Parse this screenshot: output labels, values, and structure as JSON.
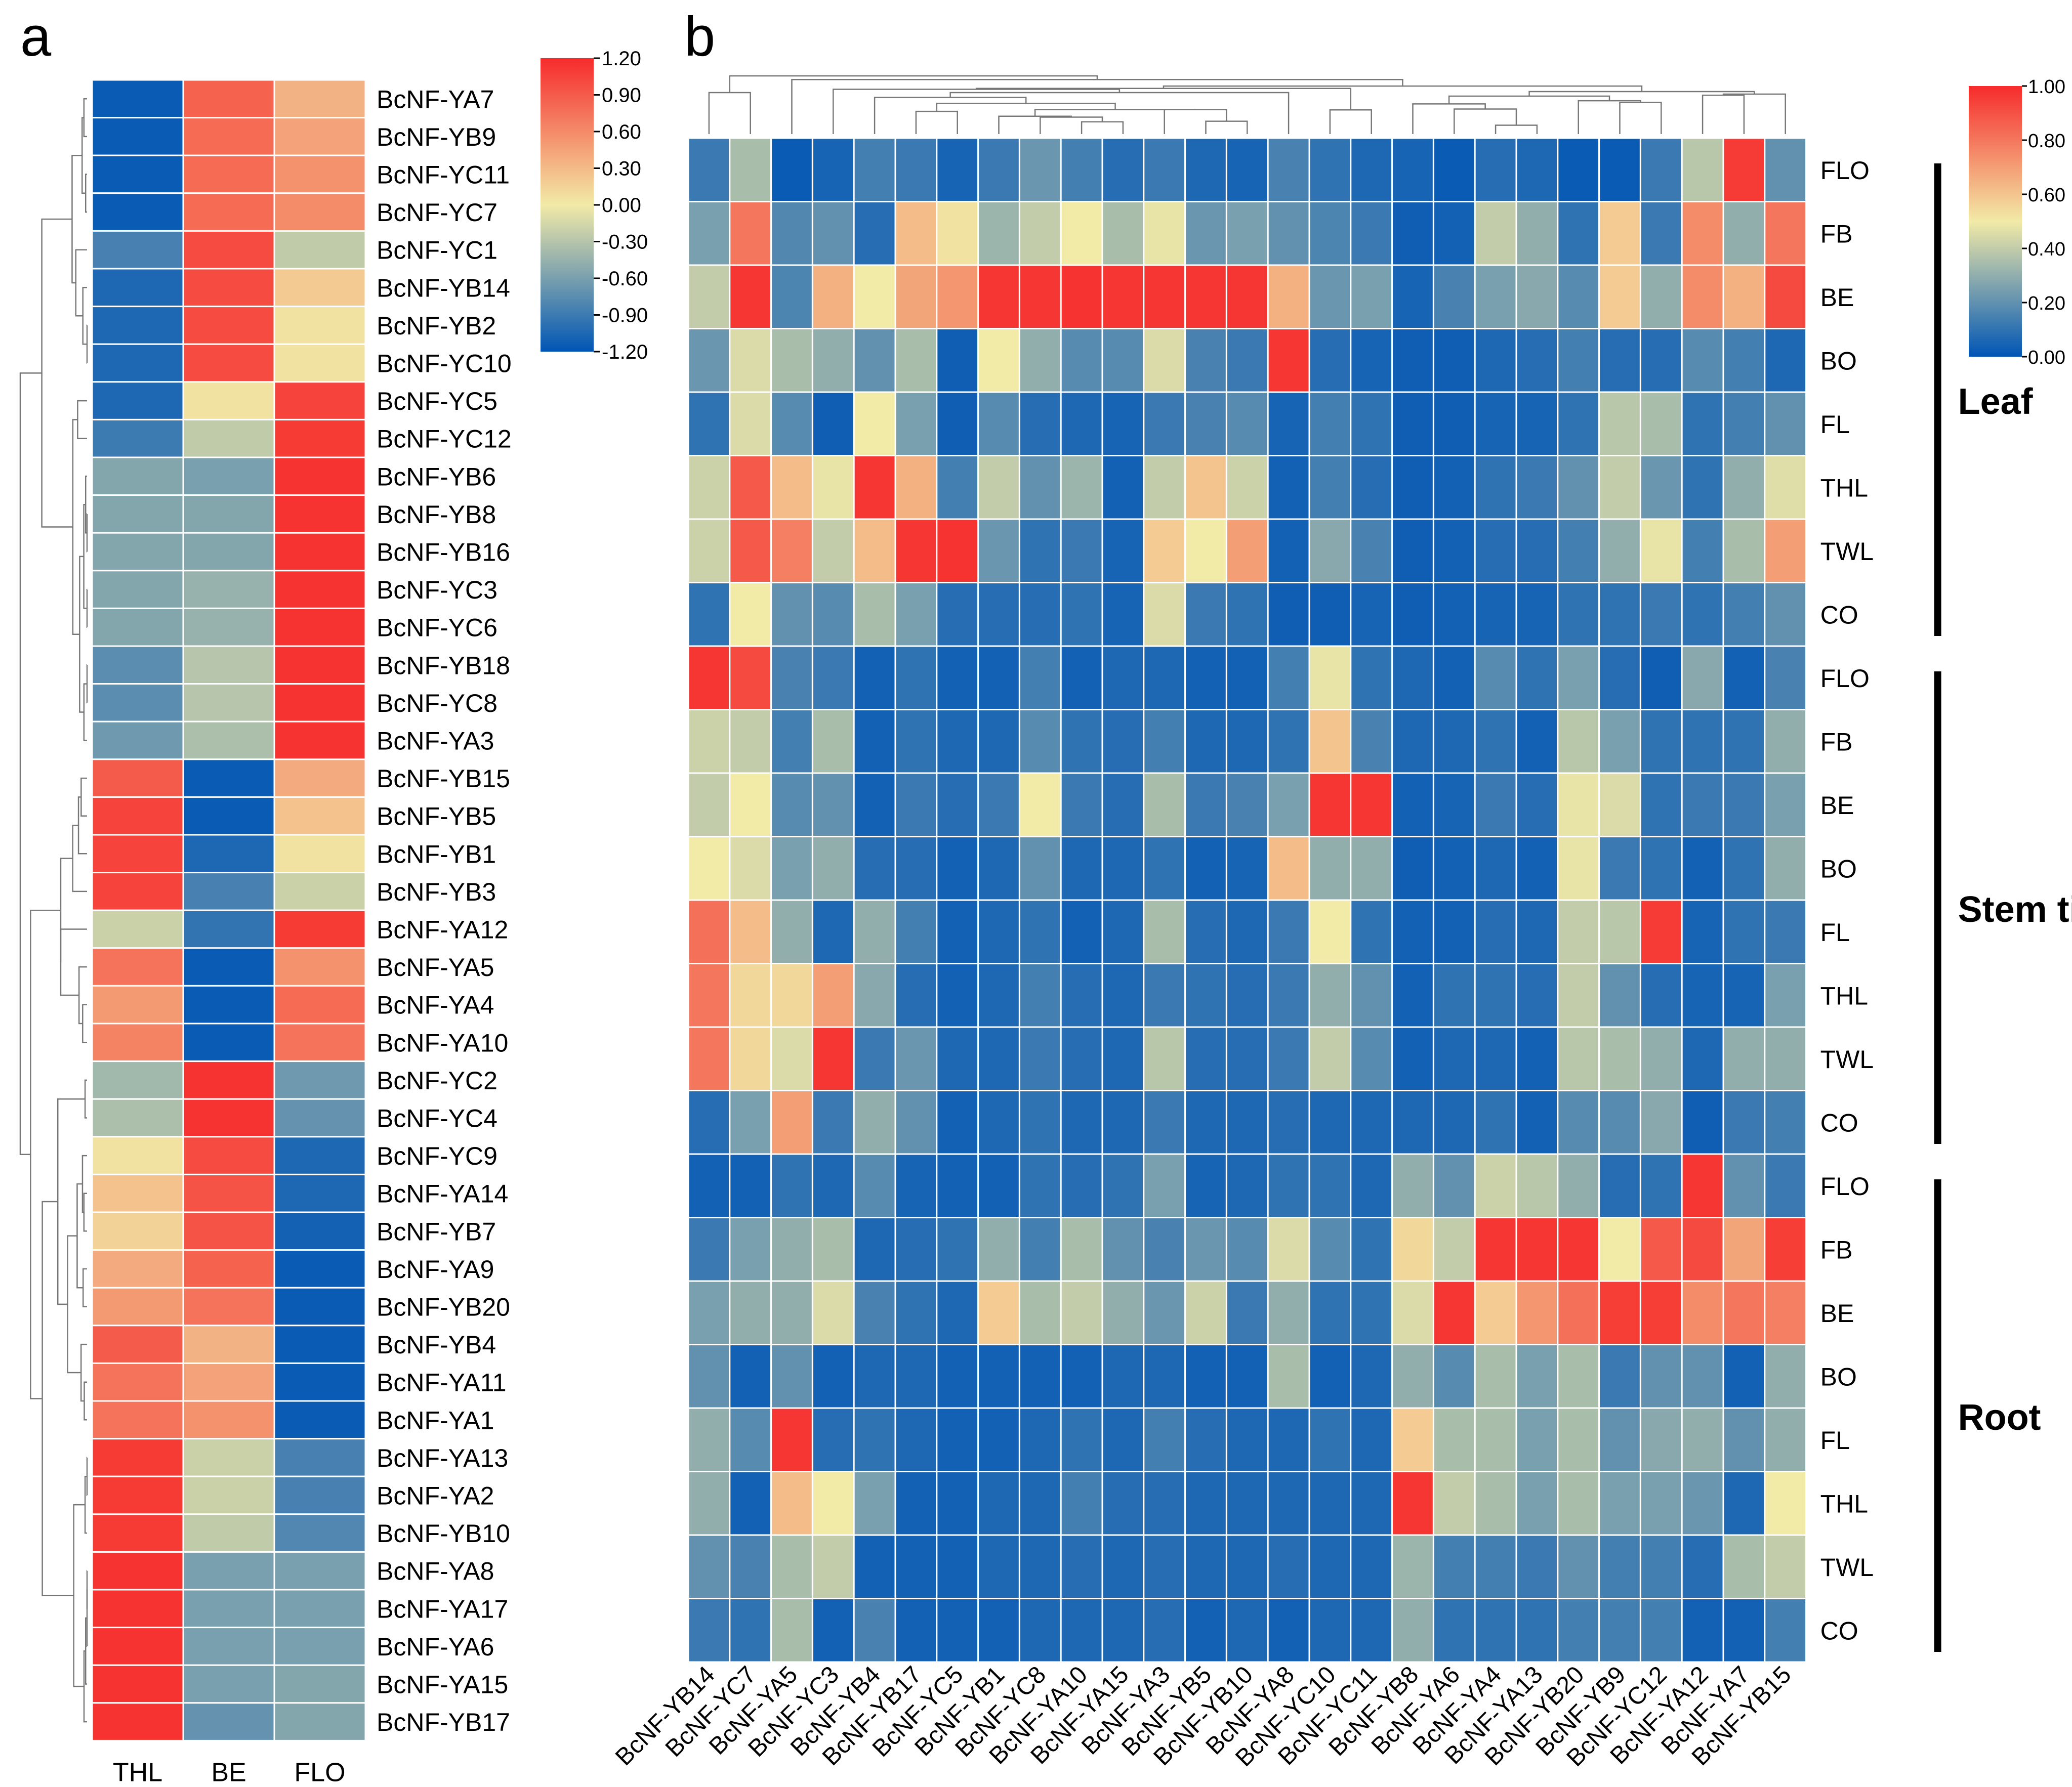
{
  "chart_data": [
    {
      "panel_label": "a",
      "type": "heatmap",
      "columns": [
        "THL",
        "BE",
        "FLO"
      ],
      "rows": [
        "BcNF-YA7",
        "BcNF-YB9",
        "BcNF-YC11",
        "BcNF-YC7",
        "BcNF-YC1",
        "BcNF-YB14",
        "BcNF-YB2",
        "BcNF-YC10",
        "BcNF-YC5",
        "BcNF-YC12",
        "BcNF-YB6",
        "BcNF-YB8",
        "BcNF-YB16",
        "BcNF-YC3",
        "BcNF-YC6",
        "BcNF-YB18",
        "BcNF-YC8",
        "BcNF-YA3",
        "BcNF-YB15",
        "BcNF-YB5",
        "BcNF-YB1",
        "BcNF-YB3",
        "BcNF-YA12",
        "BcNF-YA5",
        "BcNF-YA4",
        "BcNF-YA10",
        "BcNF-YC2",
        "BcNF-YC4",
        "BcNF-YC9",
        "BcNF-YA14",
        "BcNF-YB7",
        "BcNF-YA9",
        "BcNF-YB20",
        "BcNF-YB4",
        "BcNF-YA11",
        "BcNF-YA1",
        "BcNF-YA13",
        "BcNF-YA2",
        "BcNF-YB10",
        "BcNF-YA8",
        "BcNF-YA17",
        "BcNF-YA6",
        "BcNF-YA15",
        "BcNF-YB17"
      ],
      "values": [
        [
          -1.15,
          0.85,
          0.35
        ],
        [
          -1.15,
          0.8,
          0.45
        ],
        [
          -1.15,
          0.8,
          0.55
        ],
        [
          -1.15,
          0.8,
          0.6
        ],
        [
          -0.85,
          1.0,
          -0.25
        ],
        [
          -1.05,
          1.0,
          0.2
        ],
        [
          -1.05,
          1.0,
          0.05
        ],
        [
          -1.05,
          1.0,
          0.05
        ],
        [
          -1.05,
          0.05,
          1.05
        ],
        [
          -0.9,
          -0.25,
          1.1
        ],
        [
          -0.55,
          -0.6,
          1.15
        ],
        [
          -0.55,
          -0.55,
          1.15
        ],
        [
          -0.55,
          -0.55,
          1.15
        ],
        [
          -0.55,
          -0.45,
          1.15
        ],
        [
          -0.55,
          -0.45,
          1.15
        ],
        [
          -0.75,
          -0.3,
          1.15
        ],
        [
          -0.75,
          -0.3,
          1.15
        ],
        [
          -0.65,
          -0.35,
          1.15
        ],
        [
          0.9,
          -1.15,
          0.4
        ],
        [
          1.05,
          -1.15,
          0.25
        ],
        [
          1.05,
          -1.05,
          0.05
        ],
        [
          1.05,
          -0.85,
          -0.2
        ],
        [
          -0.2,
          -0.95,
          1.1
        ],
        [
          0.75,
          -1.15,
          0.55
        ],
        [
          0.5,
          -1.15,
          0.8
        ],
        [
          0.65,
          -1.15,
          0.75
        ],
        [
          -0.4,
          1.15,
          -0.65
        ],
        [
          -0.35,
          1.15,
          -0.7
        ],
        [
          0.05,
          1.0,
          -1.05
        ],
        [
          0.25,
          0.95,
          -1.05
        ],
        [
          0.15,
          0.95,
          -1.1
        ],
        [
          0.4,
          0.85,
          -1.15
        ],
        [
          0.5,
          0.75,
          -1.15
        ],
        [
          0.9,
          0.35,
          -1.15
        ],
        [
          0.75,
          0.45,
          -1.15
        ],
        [
          0.75,
          0.55,
          -1.15
        ],
        [
          1.1,
          -0.2,
          -0.85
        ],
        [
          1.1,
          -0.2,
          -0.85
        ],
        [
          1.1,
          -0.25,
          -0.8
        ],
        [
          1.15,
          -0.6,
          -0.6
        ],
        [
          1.15,
          -0.6,
          -0.6
        ],
        [
          1.15,
          -0.6,
          -0.6
        ],
        [
          1.15,
          -0.6,
          -0.55
        ],
        [
          1.15,
          -0.7,
          -0.55
        ]
      ],
      "colorbar": {
        "min": -1.2,
        "max": 1.2,
        "tick_labels": [
          "1.20",
          "0.90",
          "0.60",
          "0.30",
          "0.00",
          "-0.30",
          "-0.60",
          "-0.90",
          "-1.20"
        ],
        "colors": [
          "#0055b5",
          "#f2eaa7",
          "#f62b2b"
        ]
      }
    },
    {
      "panel_label": "b",
      "type": "heatmap",
      "columns": [
        "BcNF-YB14",
        "BcNF-YC7",
        "BcNF-YA5",
        "BcNF-YC3",
        "BcNF-YB4",
        "BcNF-YB17",
        "BcNF-YC5",
        "BcNF-YB1",
        "BcNF-YC8",
        "BcNF-YA10",
        "BcNF-YA15",
        "BcNF-YA3",
        "BcNF-YB5",
        "BcNF-YB10",
        "BcNF-YA8",
        "BcNF-YC10",
        "BcNF-YC11",
        "BcNF-YB8",
        "BcNF-YA6",
        "BcNF-YA4",
        "BcNF-YA13",
        "BcNF-YB20",
        "BcNF-YB9",
        "BcNF-YC12",
        "BcNF-YA12",
        "BcNF-YA7",
        "BcNF-YB15"
      ],
      "rows": [
        "FLO",
        "FB",
        "BE",
        "BO",
        "FL",
        "THL",
        "TWL",
        "CO",
        "FLO",
        "FB",
        "BE",
        "BO",
        "FL",
        "THL",
        "TWL",
        "CO",
        "FLO",
        "FB",
        "BE",
        "BO",
        "FL",
        "THL",
        "TWL",
        "CO"
      ],
      "groups": [
        {
          "label": "Leaf",
          "rows": [
            0,
            7
          ]
        },
        {
          "label": "Stem tip",
          "rows": [
            8,
            15
          ]
        },
        {
          "label": "Root",
          "rows": [
            16,
            23
          ]
        }
      ],
      "values": [
        [
          0.12,
          0.35,
          0.02,
          0.05,
          0.14,
          0.12,
          0.05,
          0.12,
          0.22,
          0.14,
          0.08,
          0.12,
          0.06,
          0.05,
          0.15,
          0.1,
          0.06,
          0.05,
          0.02,
          0.08,
          0.06,
          0.02,
          0.02,
          0.12,
          0.38,
          0.96,
          0.2
        ],
        [
          0.25,
          0.8,
          0.17,
          0.2,
          0.08,
          0.62,
          0.52,
          0.32,
          0.4,
          0.5,
          0.35,
          0.48,
          0.22,
          0.25,
          0.2,
          0.16,
          0.12,
          0.03,
          0.04,
          0.4,
          0.3,
          0.1,
          0.58,
          0.12,
          0.75,
          0.3,
          0.8
        ],
        [
          0.4,
          0.97,
          0.16,
          0.65,
          0.5,
          0.68,
          0.72,
          0.97,
          0.97,
          0.98,
          0.97,
          0.97,
          0.97,
          0.97,
          0.65,
          0.22,
          0.25,
          0.05,
          0.15,
          0.25,
          0.28,
          0.18,
          0.58,
          0.3,
          0.75,
          0.65,
          0.92
        ],
        [
          0.22,
          0.45,
          0.35,
          0.3,
          0.2,
          0.35,
          0.03,
          0.5,
          0.3,
          0.18,
          0.18,
          0.45,
          0.15,
          0.12,
          0.97,
          0.08,
          0.05,
          0.03,
          0.03,
          0.06,
          0.08,
          0.14,
          0.08,
          0.08,
          0.18,
          0.14,
          0.06
        ],
        [
          0.1,
          0.45,
          0.18,
          0.03,
          0.5,
          0.25,
          0.03,
          0.18,
          0.08,
          0.06,
          0.05,
          0.12,
          0.15,
          0.18,
          0.05,
          0.14,
          0.1,
          0.03,
          0.03,
          0.05,
          0.05,
          0.1,
          0.38,
          0.35,
          0.1,
          0.14,
          0.2
        ],
        [
          0.42,
          0.88,
          0.62,
          0.48,
          0.97,
          0.65,
          0.14,
          0.4,
          0.2,
          0.32,
          0.04,
          0.4,
          0.6,
          0.42,
          0.04,
          0.14,
          0.08,
          0.03,
          0.04,
          0.1,
          0.12,
          0.2,
          0.4,
          0.22,
          0.1,
          0.3,
          0.46
        ],
        [
          0.42,
          0.88,
          0.78,
          0.4,
          0.62,
          0.97,
          0.98,
          0.22,
          0.1,
          0.12,
          0.05,
          0.58,
          0.5,
          0.7,
          0.04,
          0.28,
          0.15,
          0.03,
          0.04,
          0.08,
          0.08,
          0.14,
          0.3,
          0.48,
          0.14,
          0.35,
          0.7
        ],
        [
          0.1,
          0.5,
          0.2,
          0.18,
          0.35,
          0.25,
          0.08,
          0.08,
          0.08,
          0.1,
          0.05,
          0.45,
          0.12,
          0.1,
          0.03,
          0.03,
          0.05,
          0.03,
          0.04,
          0.05,
          0.05,
          0.1,
          0.1,
          0.12,
          0.1,
          0.14,
          0.2
        ],
        [
          0.97,
          0.92,
          0.15,
          0.12,
          0.04,
          0.1,
          0.04,
          0.04,
          0.14,
          0.04,
          0.06,
          0.06,
          0.04,
          0.04,
          0.14,
          0.48,
          0.1,
          0.06,
          0.04,
          0.18,
          0.1,
          0.25,
          0.08,
          0.03,
          0.28,
          0.04,
          0.15
        ],
        [
          0.42,
          0.4,
          0.14,
          0.35,
          0.04,
          0.1,
          0.06,
          0.06,
          0.18,
          0.1,
          0.08,
          0.14,
          0.06,
          0.06,
          0.1,
          0.6,
          0.15,
          0.06,
          0.06,
          0.1,
          0.04,
          0.38,
          0.25,
          0.1,
          0.1,
          0.1,
          0.3
        ],
        [
          0.4,
          0.5,
          0.18,
          0.2,
          0.04,
          0.12,
          0.08,
          0.12,
          0.5,
          0.12,
          0.08,
          0.35,
          0.12,
          0.15,
          0.25,
          0.97,
          0.97,
          0.04,
          0.05,
          0.12,
          0.08,
          0.48,
          0.45,
          0.1,
          0.12,
          0.12,
          0.25
        ],
        [
          0.5,
          0.45,
          0.25,
          0.3,
          0.08,
          0.08,
          0.04,
          0.06,
          0.2,
          0.06,
          0.06,
          0.1,
          0.04,
          0.05,
          0.62,
          0.3,
          0.3,
          0.03,
          0.04,
          0.06,
          0.04,
          0.48,
          0.12,
          0.1,
          0.04,
          0.1,
          0.3
        ],
        [
          0.82,
          0.62,
          0.3,
          0.06,
          0.3,
          0.14,
          0.04,
          0.06,
          0.1,
          0.04,
          0.06,
          0.35,
          0.08,
          0.06,
          0.12,
          0.5,
          0.1,
          0.04,
          0.04,
          0.08,
          0.06,
          0.4,
          0.38,
          0.96,
          0.05,
          0.1,
          0.12
        ],
        [
          0.8,
          0.55,
          0.55,
          0.7,
          0.28,
          0.08,
          0.04,
          0.06,
          0.14,
          0.08,
          0.06,
          0.12,
          0.1,
          0.08,
          0.12,
          0.3,
          0.2,
          0.04,
          0.1,
          0.1,
          0.08,
          0.4,
          0.2,
          0.08,
          0.05,
          0.05,
          0.25
        ],
        [
          0.8,
          0.55,
          0.45,
          0.97,
          0.12,
          0.22,
          0.06,
          0.06,
          0.12,
          0.08,
          0.06,
          0.38,
          0.08,
          0.08,
          0.12,
          0.4,
          0.18,
          0.04,
          0.06,
          0.06,
          0.04,
          0.38,
          0.35,
          0.3,
          0.06,
          0.3,
          0.3
        ],
        [
          0.08,
          0.25,
          0.7,
          0.12,
          0.3,
          0.2,
          0.04,
          0.06,
          0.1,
          0.06,
          0.06,
          0.12,
          0.06,
          0.06,
          0.08,
          0.06,
          0.06,
          0.06,
          0.06,
          0.1,
          0.04,
          0.18,
          0.18,
          0.28,
          0.03,
          0.12,
          0.14
        ],
        [
          0.04,
          0.04,
          0.1,
          0.06,
          0.18,
          0.05,
          0.04,
          0.04,
          0.1,
          0.08,
          0.1,
          0.25,
          0.05,
          0.06,
          0.1,
          0.1,
          0.06,
          0.3,
          0.2,
          0.42,
          0.38,
          0.3,
          0.08,
          0.1,
          0.97,
          0.2,
          0.12
        ],
        [
          0.12,
          0.25,
          0.3,
          0.35,
          0.06,
          0.08,
          0.1,
          0.3,
          0.14,
          0.35,
          0.2,
          0.15,
          0.22,
          0.18,
          0.45,
          0.18,
          0.1,
          0.55,
          0.4,
          0.97,
          0.97,
          0.97,
          0.5,
          0.88,
          0.92,
          0.68,
          0.95
        ],
        [
          0.25,
          0.3,
          0.3,
          0.45,
          0.15,
          0.1,
          0.06,
          0.58,
          0.35,
          0.4,
          0.3,
          0.22,
          0.42,
          0.12,
          0.3,
          0.1,
          0.1,
          0.45,
          0.97,
          0.58,
          0.72,
          0.82,
          0.95,
          0.95,
          0.75,
          0.8,
          0.78
        ],
        [
          0.2,
          0.04,
          0.2,
          0.04,
          0.06,
          0.06,
          0.04,
          0.04,
          0.04,
          0.04,
          0.06,
          0.06,
          0.04,
          0.04,
          0.35,
          0.04,
          0.06,
          0.3,
          0.18,
          0.35,
          0.25,
          0.35,
          0.12,
          0.2,
          0.2,
          0.04,
          0.3
        ],
        [
          0.3,
          0.18,
          0.97,
          0.08,
          0.1,
          0.06,
          0.04,
          0.04,
          0.06,
          0.1,
          0.06,
          0.14,
          0.08,
          0.06,
          0.06,
          0.1,
          0.06,
          0.58,
          0.35,
          0.35,
          0.25,
          0.35,
          0.2,
          0.28,
          0.3,
          0.2,
          0.3
        ],
        [
          0.3,
          0.04,
          0.62,
          0.5,
          0.25,
          0.04,
          0.04,
          0.06,
          0.06,
          0.14,
          0.08,
          0.08,
          0.06,
          0.06,
          0.06,
          0.06,
          0.06,
          0.97,
          0.4,
          0.35,
          0.25,
          0.35,
          0.25,
          0.25,
          0.22,
          0.06,
          0.5
        ],
        [
          0.2,
          0.15,
          0.35,
          0.4,
          0.04,
          0.04,
          0.04,
          0.06,
          0.06,
          0.08,
          0.06,
          0.08,
          0.06,
          0.06,
          0.08,
          0.06,
          0.06,
          0.32,
          0.14,
          0.14,
          0.12,
          0.2,
          0.14,
          0.14,
          0.08,
          0.35,
          0.4
        ],
        [
          0.12,
          0.1,
          0.35,
          0.04,
          0.15,
          0.04,
          0.04,
          0.04,
          0.06,
          0.06,
          0.06,
          0.08,
          0.04,
          0.06,
          0.04,
          0.06,
          0.06,
          0.3,
          0.1,
          0.1,
          0.1,
          0.14,
          0.14,
          0.14,
          0.04,
          0.04,
          0.14
        ]
      ],
      "colorbar": {
        "min": 0,
        "max": 1,
        "tick_labels": [
          "1.00",
          "0.80",
          "0.60",
          "0.40",
          "0.20",
          "0.00"
        ],
        "colors": [
          "#0055b5",
          "#f2eaa7",
          "#f62b2b"
        ]
      }
    }
  ]
}
